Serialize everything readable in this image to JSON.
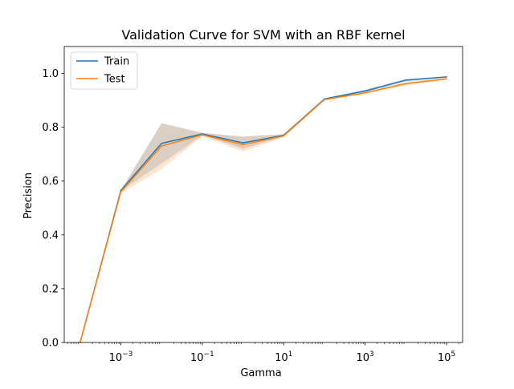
{
  "chart_data": {
    "type": "line",
    "title": "Validation Curve for SVM with an RBF kernel",
    "xlabel": "Gamma",
    "ylabel": "Precision",
    "xscale": "log",
    "xlim": [
      4.07e-05,
      248000
    ],
    "ylim": [
      0.0,
      1.1
    ],
    "x": [
      0.0001,
      0.001,
      0.01,
      0.1,
      1,
      10,
      100,
      1000,
      10000,
      100000
    ],
    "xticks": [
      {
        "value": 0.001,
        "base": "10",
        "exp": "−3"
      },
      {
        "value": 0.1,
        "base": "10",
        "exp": "−1"
      },
      {
        "value": 10,
        "base": "10",
        "exp": "1"
      },
      {
        "value": 1000,
        "base": "10",
        "exp": "3"
      },
      {
        "value": 100000,
        "base": "10",
        "exp": "5"
      }
    ],
    "yticks": [
      0.0,
      0.2,
      0.4,
      0.6,
      0.8,
      1.0
    ],
    "ytick_labels": [
      "0.0",
      "0.2",
      "0.4",
      "0.6",
      "0.8",
      "1.0"
    ],
    "series": [
      {
        "name": "Train",
        "color": "#1f77b4",
        "values": [
          0.0,
          0.565,
          0.74,
          0.775,
          0.742,
          0.77,
          0.905,
          0.935,
          0.975,
          0.987
        ],
        "lower": [
          0.0,
          0.563,
          0.665,
          0.77,
          0.72,
          0.765,
          0.903,
          0.93,
          0.97,
          0.985
        ],
        "upper": [
          0.0,
          0.567,
          0.815,
          0.78,
          0.765,
          0.775,
          0.907,
          0.94,
          0.98,
          0.989
        ]
      },
      {
        "name": "Test",
        "color": "#ff7f0e",
        "values": [
          0.0,
          0.56,
          0.73,
          0.772,
          0.735,
          0.768,
          0.903,
          0.928,
          0.962,
          0.98
        ],
        "lower": [
          0.0,
          0.555,
          0.645,
          0.766,
          0.71,
          0.762,
          0.9,
          0.923,
          0.955,
          0.977
        ],
        "upper": [
          0.0,
          0.565,
          0.815,
          0.778,
          0.765,
          0.774,
          0.906,
          0.933,
          0.969,
          0.983
        ]
      }
    ],
    "legend": {
      "position": "top-left",
      "entries": [
        "Train",
        "Test"
      ]
    },
    "grid": false
  }
}
